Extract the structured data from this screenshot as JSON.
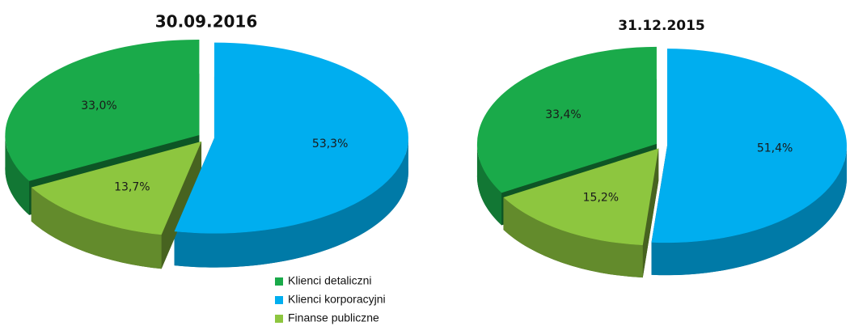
{
  "chart_data": [
    {
      "type": "pie",
      "title": "30.09.2016",
      "categories": [
        "Klienci detaliczni",
        "Klienci korporacyjni",
        "Finanse publiczne"
      ],
      "values": [
        33.0,
        53.3,
        13.7
      ],
      "value_labels": [
        "33,0%",
        "53,3%",
        "13,7%"
      ],
      "colors": [
        "#1aaa4a",
        "#00aeef",
        "#8dc63f"
      ]
    },
    {
      "type": "pie",
      "title": "31.12.2015",
      "categories": [
        "Klienci detaliczni",
        "Klienci korporacyjni",
        "Finanse publiczne"
      ],
      "values": [
        33.4,
        51.4,
        15.2
      ],
      "value_labels": [
        "33,4%",
        "51,4%",
        "15,2%"
      ],
      "colors": [
        "#1aaa4a",
        "#00aeef",
        "#8dc63f"
      ]
    }
  ]
}
